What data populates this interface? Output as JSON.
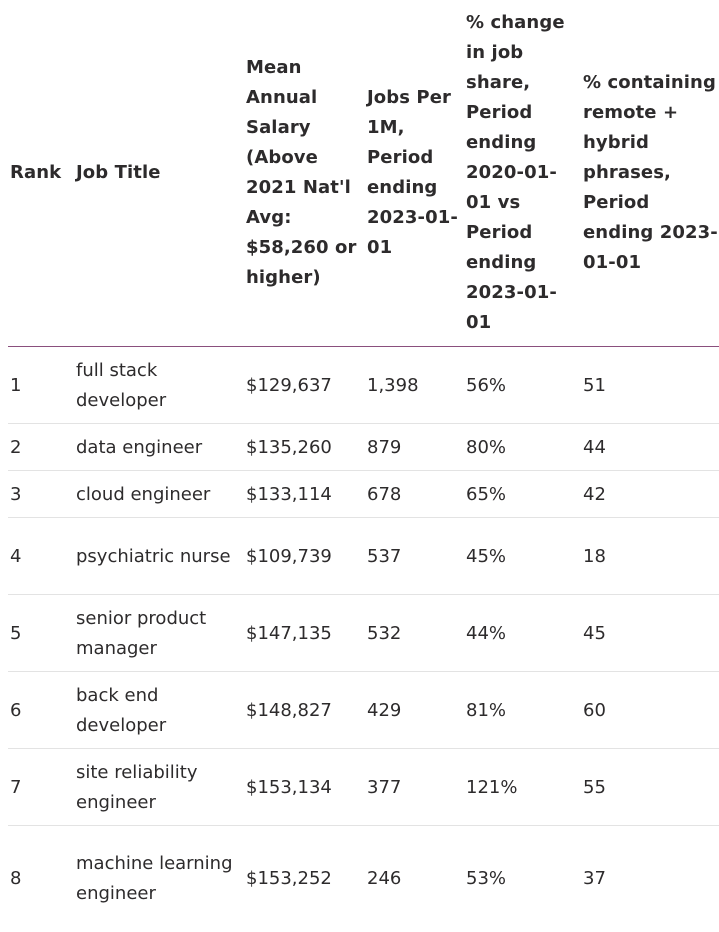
{
  "table": {
    "headers": [
      "Rank",
      "Job Title",
      "Mean Annual Salary (Above 2021 Nat'l Avg: $58,260 or higher)",
      "Jobs Per 1M, Period ending 2023-01-01",
      "% change in job share, Period ending 2020-01-01 vs Period ending 2023-01-01",
      "% containing remote + hybrid phrases, Period ending 2023-01-01"
    ],
    "rows": [
      {
        "rank": "1",
        "title": "full stack developer",
        "salary": "$129,637",
        "jobs": "1,398",
        "change": "56%",
        "remote": "51"
      },
      {
        "rank": "2",
        "title": "data engineer",
        "salary": "$135,260",
        "jobs": "879",
        "change": "80%",
        "remote": "44"
      },
      {
        "rank": "3",
        "title": "cloud engineer",
        "salary": "$133,114",
        "jobs": "678",
        "change": "65%",
        "remote": "42"
      },
      {
        "rank": "4",
        "title": "psychiatric nurse",
        "salary": "$109,739",
        "jobs": "537",
        "change": "45%",
        "remote": "18"
      },
      {
        "rank": "5",
        "title": "senior product manager",
        "salary": "$147,135",
        "jobs": "532",
        "change": "44%",
        "remote": "45"
      },
      {
        "rank": "6",
        "title": "back end developer",
        "salary": "$148,827",
        "jobs": "429",
        "change": "81%",
        "remote": "60"
      },
      {
        "rank": "7",
        "title": "site reliability engineer",
        "salary": "$153,134",
        "jobs": "377",
        "change": "121%",
        "remote": "55"
      },
      {
        "rank": "8",
        "title": "machine learning engineer",
        "salary": "$153,252",
        "jobs": "246",
        "change": "53%",
        "remote": "37"
      }
    ]
  },
  "colors": {
    "header_rule": "#8a4f7d",
    "row_rule": "#e3e3e3",
    "text": "#2d2b2c"
  }
}
